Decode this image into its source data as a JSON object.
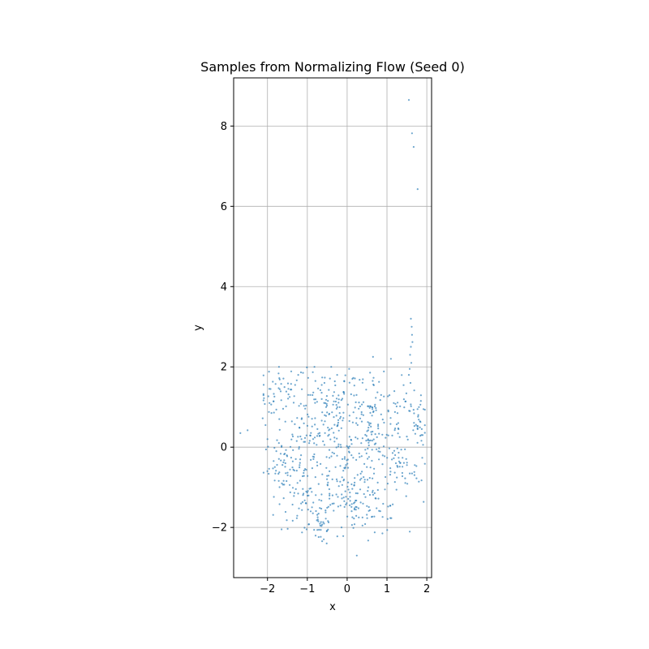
{
  "chart_data": {
    "type": "scatter",
    "title": "Samples from Normalizing Flow (Seed 0)",
    "xlabel": "x",
    "ylabel": "y",
    "xlim": [
      -2.85,
      2.12
    ],
    "ylim": [
      -3.25,
      9.2
    ],
    "xticks": [
      -2,
      -1,
      0,
      1,
      2
    ],
    "yticks": [
      -2,
      0,
      2,
      4,
      6,
      8
    ],
    "xtick_labels": [
      "−2",
      "−1",
      "0",
      "1",
      "2"
    ],
    "ytick_labels": [
      "−2",
      "0",
      "2",
      "4",
      "6",
      "8"
    ],
    "grid": true,
    "point_color": "#1f77b4",
    "series": [
      {
        "points": [
          [
            1.55,
            8.65
          ],
          [
            1.63,
            7.82
          ],
          [
            1.67,
            7.48
          ],
          [
            1.77,
            6.43
          ],
          [
            1.6,
            3.2
          ],
          [
            1.62,
            3.0
          ],
          [
            1.63,
            2.8
          ],
          [
            1.64,
            2.62
          ],
          [
            1.6,
            2.5
          ],
          [
            1.58,
            2.3
          ],
          [
            1.61,
            2.1
          ],
          [
            1.57,
            1.95
          ],
          [
            1.55,
            1.8
          ],
          [
            1.59,
            1.6
          ],
          [
            -2.68,
            0.35
          ],
          [
            -2.5,
            0.42
          ],
          [
            -2.12,
            0.72
          ],
          [
            -2.05,
            0.55
          ],
          [
            -2.0,
            0.2
          ],
          [
            -1.95,
            1.1
          ],
          [
            -1.9,
            0.85
          ],
          [
            0.65,
            2.25
          ],
          [
            1.1,
            2.2
          ],
          [
            0.05,
            1.95
          ],
          [
            -0.4,
            2.0
          ],
          [
            -0.25,
            1.8
          ]
        ],
        "clusters": [
          {
            "cx": -1.6,
            "cy": 1.35,
            "sx": 0.3,
            "sy": 0.35,
            "n": 55
          },
          {
            "cx": -0.6,
            "cy": 0.9,
            "sx": 0.35,
            "sy": 0.5,
            "n": 95
          },
          {
            "cx": 0.6,
            "cy": 0.5,
            "sx": 0.4,
            "sy": 0.6,
            "n": 95
          },
          {
            "cx": -1.6,
            "cy": -0.5,
            "sx": 0.25,
            "sy": 0.35,
            "n": 60
          },
          {
            "cx": -1.15,
            "cy": -1.4,
            "sx": 0.25,
            "sy": 0.35,
            "n": 40
          },
          {
            "cx": -0.65,
            "cy": -1.9,
            "sx": 0.15,
            "sy": 0.3,
            "n": 35
          },
          {
            "cx": 0.0,
            "cy": -0.6,
            "sx": 0.5,
            "sy": 0.6,
            "n": 110
          },
          {
            "cx": 0.5,
            "cy": -1.6,
            "sx": 0.45,
            "sy": 0.3,
            "n": 60
          },
          {
            "cx": 1.3,
            "cy": -0.55,
            "sx": 0.3,
            "sy": 0.3,
            "n": 50
          },
          {
            "cx": 1.8,
            "cy": 0.55,
            "sx": 0.12,
            "sy": 0.45,
            "n": 30
          },
          {
            "cx": -1.0,
            "cy": 0.1,
            "sx": 0.35,
            "sy": 0.5,
            "n": 45
          },
          {
            "cx": 1.2,
            "cy": 0.9,
            "sx": 0.3,
            "sy": 0.5,
            "n": 40
          },
          {
            "cx": 0.2,
            "cy": 1.4,
            "sx": 0.45,
            "sy": 0.3,
            "n": 35
          },
          {
            "cx": -0.3,
            "cy": -1.2,
            "sx": 0.4,
            "sy": 0.3,
            "n": 40
          }
        ]
      }
    ]
  }
}
